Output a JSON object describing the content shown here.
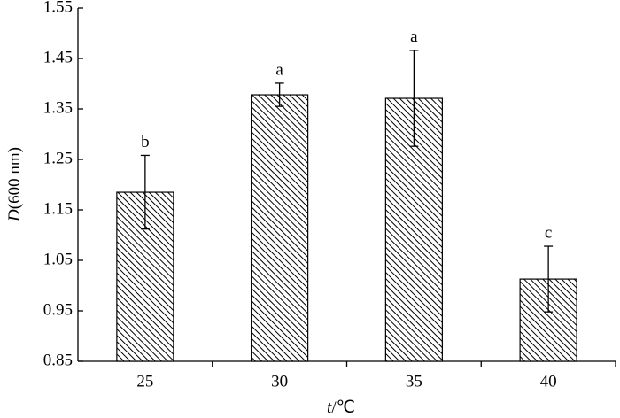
{
  "chart_data": {
    "type": "bar",
    "categories": [
      "25",
      "30",
      "35",
      "40"
    ],
    "values": [
      1.185,
      1.378,
      1.371,
      1.013
    ],
    "errors": [
      0.073,
      0.023,
      0.095,
      0.065
    ],
    "annotations": [
      "b",
      "a",
      "a",
      "c"
    ],
    "xlabel": [
      "t",
      "/℃"
    ],
    "ylabel": [
      "D",
      "(600 nm)"
    ],
    "color": "#000000",
    "hatch": true,
    "ylim": [
      0.85,
      1.55
    ],
    "yticks": [
      0.85,
      0.95,
      1.05,
      1.15,
      1.25,
      1.35,
      1.45,
      1.55
    ]
  }
}
